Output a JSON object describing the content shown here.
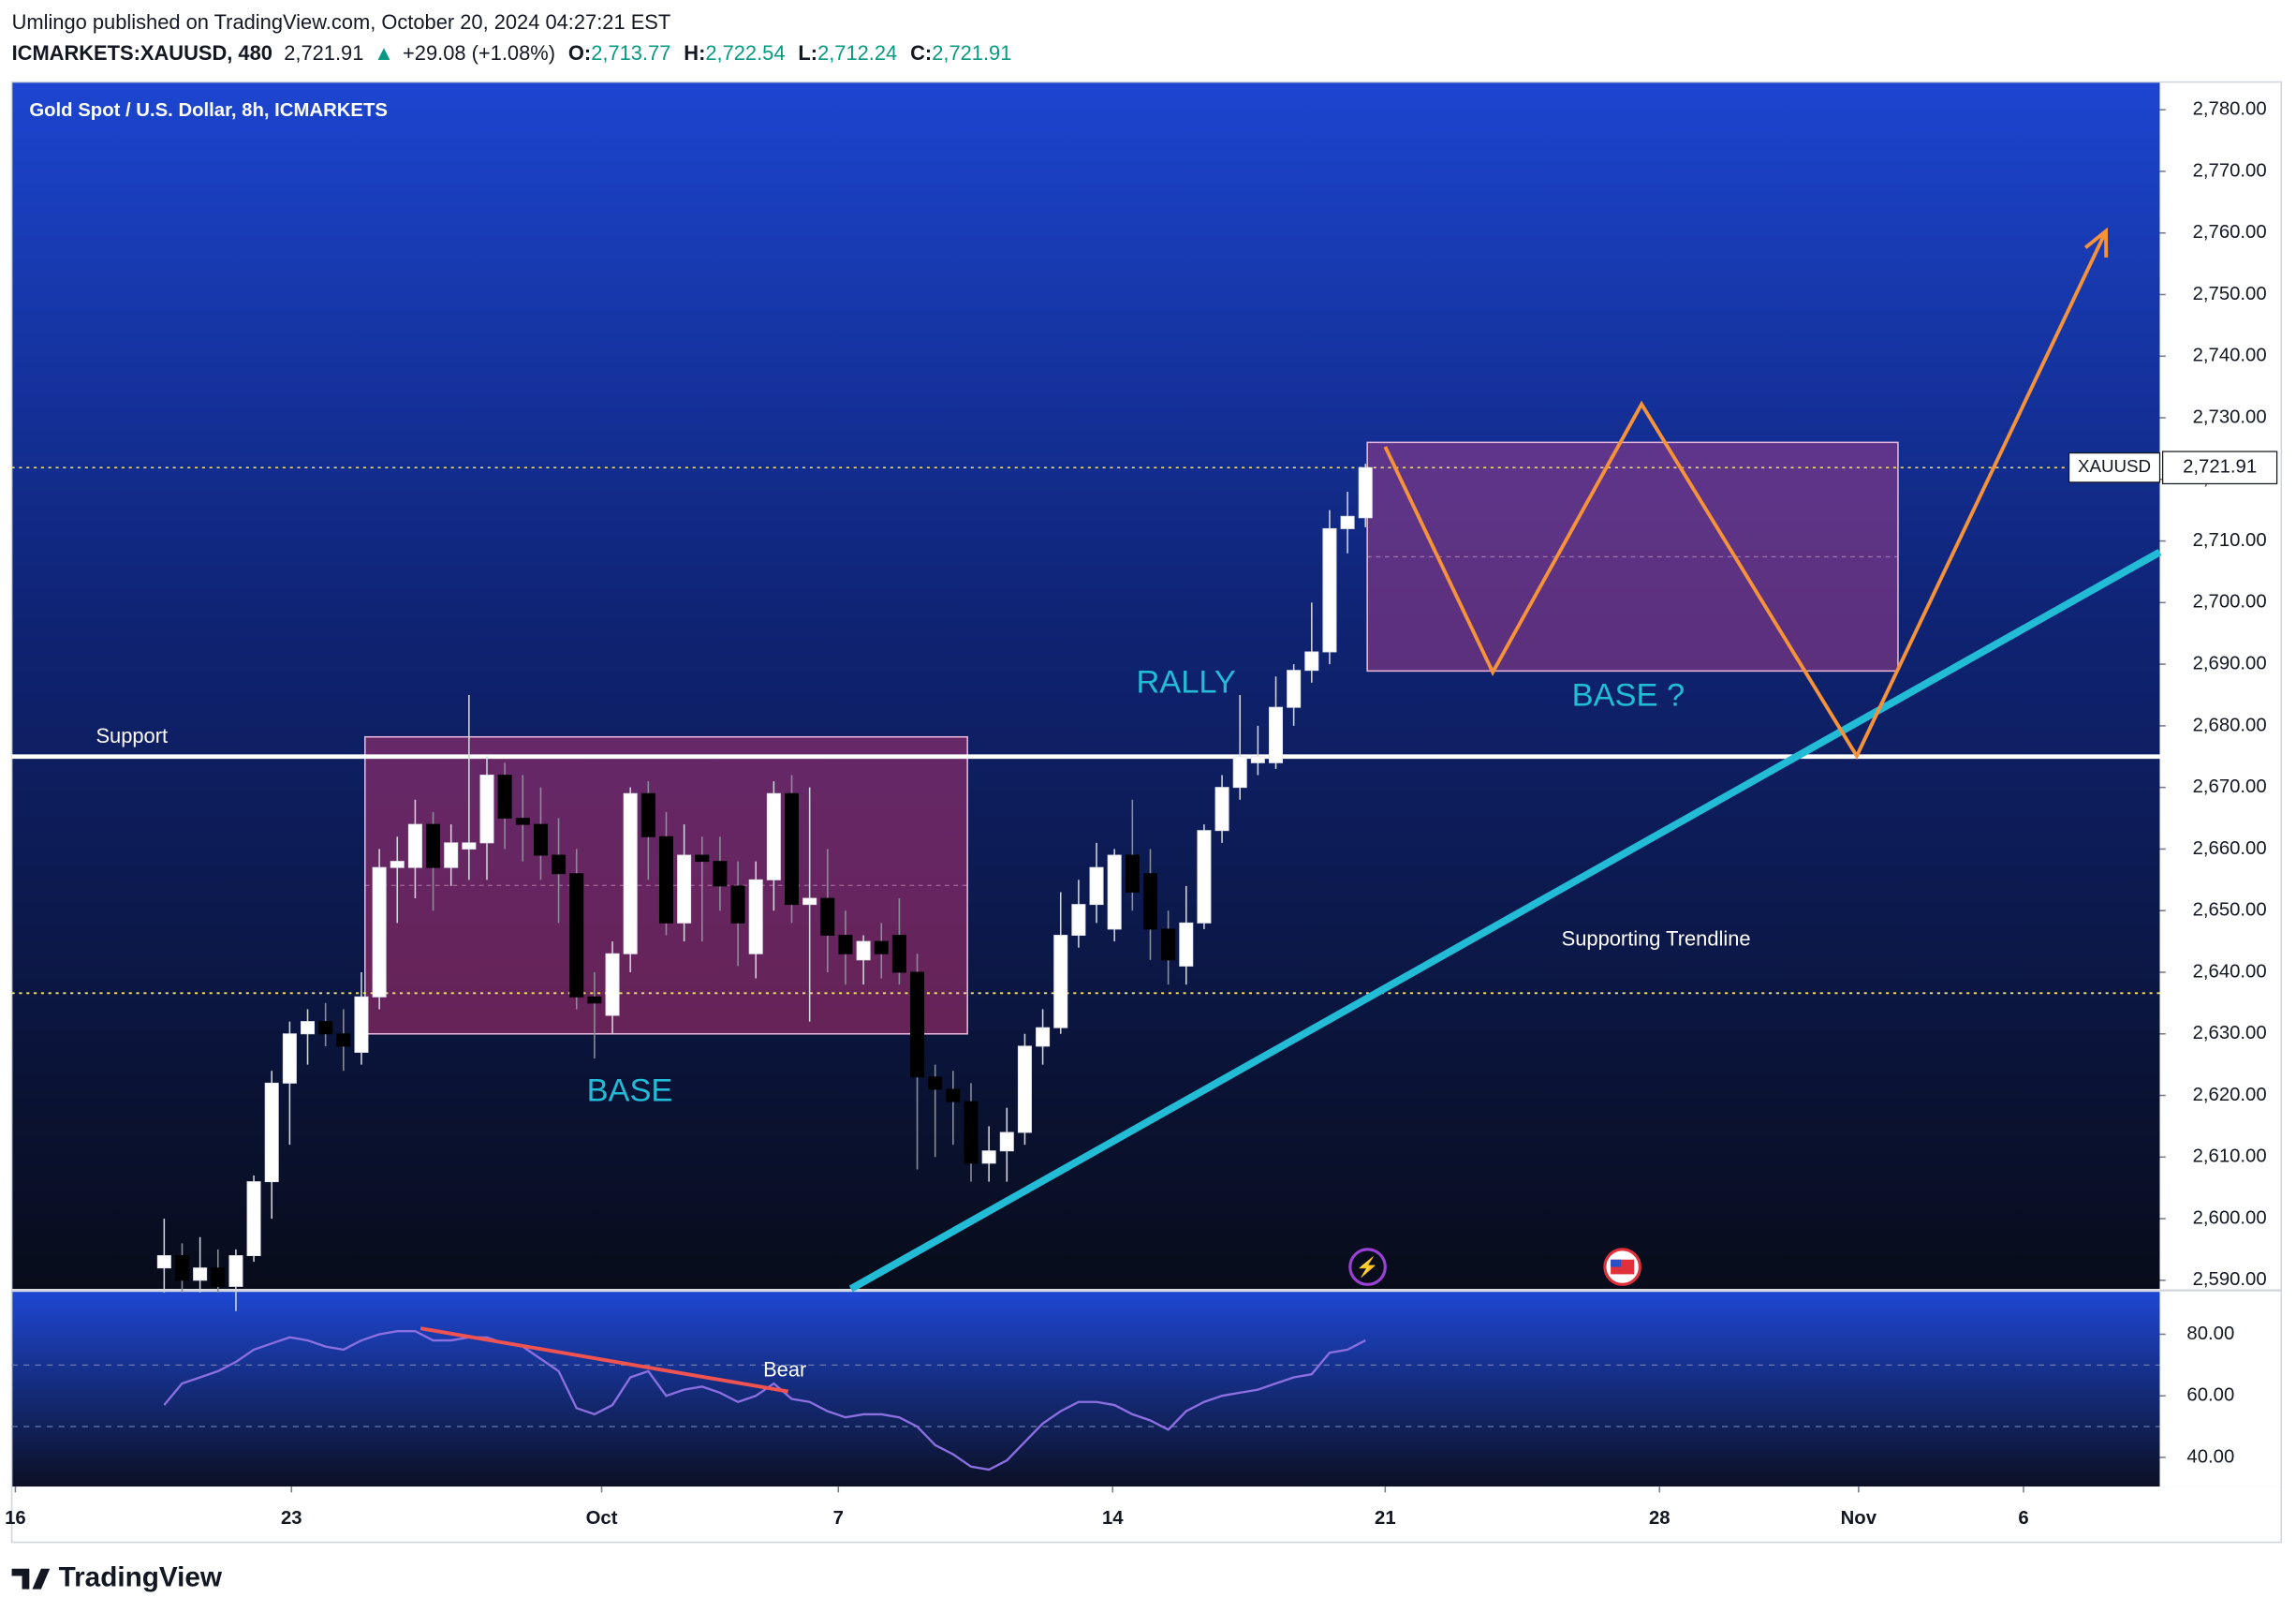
{
  "header": {
    "publisher": "Umlingo published on TradingView.com, October 20, 2024 04:27:21 EST",
    "symbol": "ICMARKETS:XAUUSD, 480",
    "last": "2,721.91",
    "change": "+29.08 (+1.08%)",
    "ohlc": [
      {
        "label": "O:",
        "value": "2,713.77"
      },
      {
        "label": "H:",
        "value": "2,722.54"
      },
      {
        "label": "L:",
        "value": "2,712.24"
      },
      {
        "label": "C:",
        "value": "2,721.91"
      }
    ]
  },
  "footer": {
    "brand": "TradingView"
  },
  "chart_data": {
    "type": "candlestick",
    "title": "Gold Spot / U.S. Dollar, 8h, ICMARKETS",
    "up_color": "#ffffff",
    "down_color": "#000000",
    "open": [
      2592,
      2594,
      2590,
      2592,
      2589,
      2594,
      2606,
      2622,
      2630,
      2632,
      2630,
      2627,
      2636,
      2657,
      2657,
      2664,
      2657,
      2660,
      2661,
      2672,
      2665,
      2664,
      2659,
      2656,
      2636,
      2633,
      2643,
      2669,
      2662,
      2648,
      2659,
      2658,
      2654,
      2643,
      2655,
      2669,
      2651,
      2652,
      2646,
      2642,
      2645,
      2646,
      2640,
      2623,
      2621,
      2619,
      2609,
      2611,
      2614,
      2628,
      2631,
      2646,
      2651,
      2647,
      2659,
      2656,
      2647,
      2641,
      2648,
      2663,
      2670,
      2674,
      2674,
      2683,
      2689,
      2692,
      2712,
      2713.77
    ],
    "high": [
      2600,
      2596,
      2597,
      2595,
      2595,
      2607,
      2624,
      2632,
      2634,
      2635,
      2634,
      2640,
      2660,
      2662,
      2668,
      2666,
      2664,
      2685,
      2675,
      2674,
      2672,
      2670,
      2665,
      2660,
      2640,
      2645,
      2670,
      2671,
      2666,
      2664,
      2662,
      2662,
      2658,
      2658,
      2671,
      2672,
      2670,
      2660,
      2650,
      2646,
      2648,
      2652,
      2643,
      2625,
      2624,
      2622,
      2615,
      2618,
      2630,
      2634,
      2653,
      2655,
      2661,
      2660,
      2668,
      2660,
      2650,
      2654,
      2664,
      2672,
      2685,
      2680,
      2688,
      2690,
      2700,
      2715,
      2718,
      2722.54
    ],
    "low": [
      2588,
      2588,
      2588,
      2588,
      2585,
      2593,
      2600,
      2612,
      2625,
      2628,
      2624,
      2625,
      2634,
      2648,
      2652,
      2650,
      2654,
      2655,
      2655,
      2660,
      2658,
      2655,
      2648,
      2634,
      2626,
      2630,
      2640,
      2655,
      2646,
      2645,
      2645,
      2650,
      2641,
      2639,
      2650,
      2648,
      2632,
      2640,
      2638,
      2638,
      2639,
      2638,
      2608,
      2610,
      2612,
      2606,
      2606,
      2606,
      2612,
      2625,
      2630,
      2644,
      2648,
      2645,
      2650,
      2642,
      2638,
      2638,
      2647,
      2661,
      2668,
      2672,
      2673,
      2680,
      2687,
      2690,
      2708,
      2712.24
    ],
    "close": [
      2594,
      2590,
      2592,
      2589,
      2594,
      2606,
      2622,
      2630,
      2632,
      2630,
      2628,
      2636,
      2657,
      2658,
      2664,
      2657,
      2661,
      2661,
      2672,
      2665,
      2664,
      2659,
      2656,
      2636,
      2635,
      2643,
      2669,
      2662,
      2648,
      2659,
      2658,
      2654,
      2648,
      2655,
      2669,
      2651,
      2652,
      2646,
      2643,
      2645,
      2643,
      2640,
      2623,
      2621,
      2619,
      2609,
      2611,
      2614,
      2628,
      2631,
      2646,
      2651,
      2657,
      2659,
      2653,
      2647,
      2642,
      2648,
      2663,
      2670,
      2675,
      2675,
      2683,
      2689,
      2692,
      2712,
      2714,
      2721.91
    ],
    "xlim": [
      -8.5,
      111.3
    ],
    "xticks": [
      {
        "value": -8.3,
        "label": "16"
      },
      {
        "value": 7.1,
        "label": "23"
      },
      {
        "value": 24.4,
        "label": "Oct"
      },
      {
        "value": 37.6,
        "label": "7"
      },
      {
        "value": 52.9,
        "label": "14"
      },
      {
        "value": 68.1,
        "label": "21"
      },
      {
        "value": 83.4,
        "label": "28"
      },
      {
        "value": 94.5,
        "label": "Nov"
      },
      {
        "value": 103.7,
        "label": "6"
      }
    ],
    "ylim": [
      2588.6,
      2784.5
    ],
    "yticks": [
      {
        "value": 2590,
        "label": "2,590.00"
      },
      {
        "value": 2600,
        "label": "2,600.00"
      },
      {
        "value": 2610,
        "label": "2,610.00"
      },
      {
        "value": 2620,
        "label": "2,620.00"
      },
      {
        "value": 2630,
        "label": "2,630.00"
      },
      {
        "value": 2640,
        "label": "2,640.00"
      },
      {
        "value": 2650,
        "label": "2,650.00"
      },
      {
        "value": 2660,
        "label": "2,660.00"
      },
      {
        "value": 2670,
        "label": "2,670.00"
      },
      {
        "value": 2680,
        "label": "2,680.00"
      },
      {
        "value": 2690,
        "label": "2,690.00"
      },
      {
        "value": 2700,
        "label": "2,700.00"
      },
      {
        "value": 2710,
        "label": "2,710.00"
      },
      {
        "value": 2720,
        "label": "2,720.00"
      },
      {
        "value": 2730,
        "label": "2,730.00"
      },
      {
        "value": 2740,
        "label": "2,740.00"
      },
      {
        "value": 2750,
        "label": "2,750.00"
      },
      {
        "value": 2760,
        "label": "2,760.00"
      },
      {
        "value": 2770,
        "label": "2,770.00"
      },
      {
        "value": 2780,
        "label": "2,780.00"
      }
    ],
    "price_label": {
      "name": "XAUUSD",
      "value": 2721.91,
      "label": "2,721.91"
    },
    "support": {
      "name": "Support",
      "value": 2675,
      "color": "#ffffff"
    },
    "level": {
      "value": 2636.6,
      "color": "#f5e663"
    },
    "boxes": [
      {
        "x": [
          11.2,
          44.8
        ],
        "y": [
          2630,
          2678.2
        ],
        "color": "#b0306e"
      },
      {
        "x": [
          67.1,
          96.7
        ],
        "y": [
          2688.9,
          2726
        ],
        "color": "#9c3c86"
      }
    ],
    "trendline": {
      "x": [
        38.3,
        111.3
      ],
      "y": [
        2588.6,
        2708.2
      ],
      "color": "#22bcd6"
    },
    "projection": {
      "x": [
        68.1,
        74.1,
        82.4,
        94.4,
        108.3
      ],
      "y": [
        2725.3,
        2688.7,
        2732.2,
        2675.1,
        2760.3
      ],
      "color": "#f6923a"
    },
    "labels": [
      "RALLY",
      "BASE",
      "BASE ?",
      "Supporting Trendline",
      "Bear"
    ],
    "rsi": {
      "color": "#8c6fe0",
      "values": [
        57,
        64,
        66,
        68,
        71,
        75,
        77,
        79,
        78,
        76,
        75,
        78,
        80,
        81,
        81,
        78,
        78,
        79,
        79,
        77,
        76,
        72,
        68,
        56,
        54,
        57,
        66,
        68,
        60,
        62,
        63,
        61,
        58,
        60,
        64,
        59,
        58,
        55,
        53,
        54,
        54,
        53,
        50,
        44,
        41,
        37,
        36,
        39,
        45,
        51,
        55,
        58,
        58,
        57,
        54,
        52,
        49,
        55,
        58,
        60,
        61,
        62,
        64,
        66,
        67,
        74,
        75,
        78
      ],
      "ylim": [
        30.5,
        93.3
      ],
      "yticks": [
        {
          "value": 80,
          "label": "80.00"
        },
        {
          "value": 60,
          "label": "60.00"
        },
        {
          "value": 40,
          "label": "40.00"
        }
      ],
      "bands": [
        70,
        50
      ],
      "divergence": {
        "x": [
          14.3,
          34.8
        ],
        "y": [
          81.9,
          61.4
        ],
        "color": "#f05350"
      }
    }
  }
}
